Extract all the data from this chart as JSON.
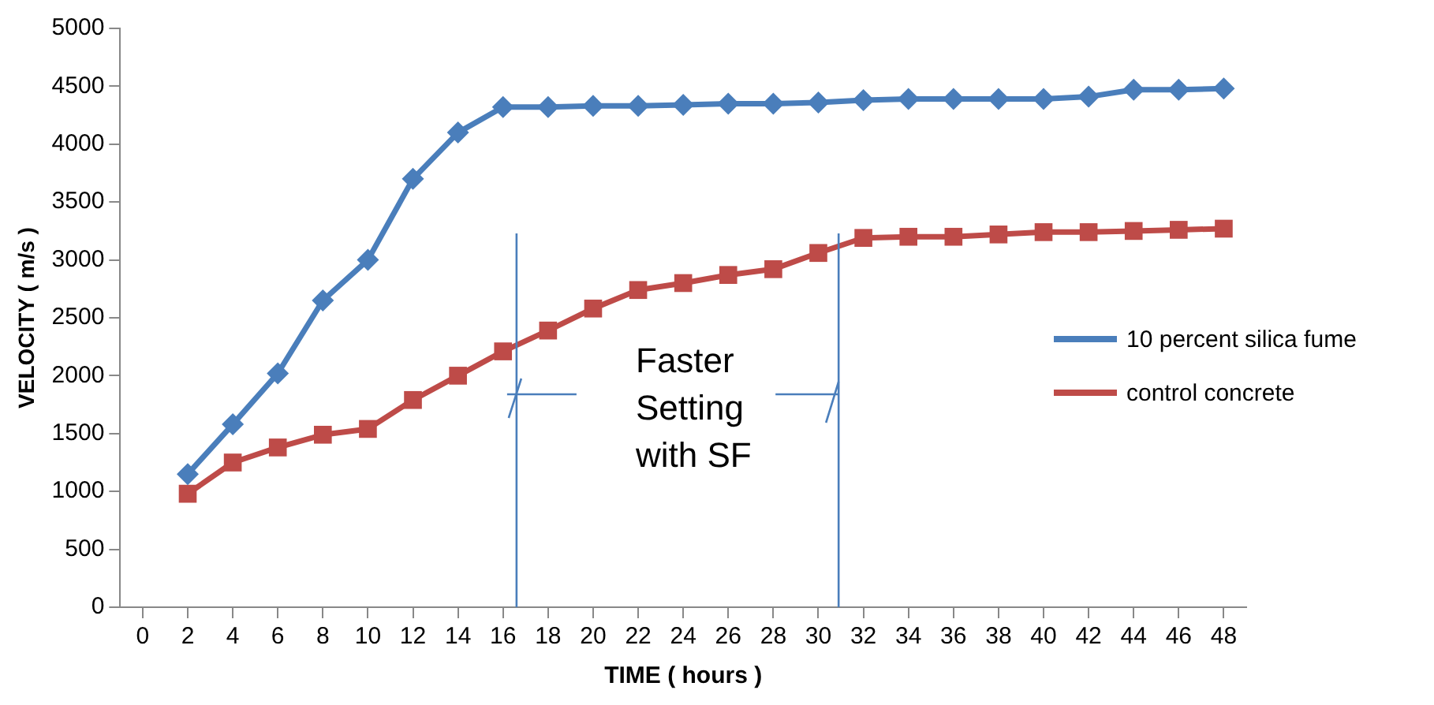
{
  "chart_data": {
    "type": "line",
    "xlabel": "TIME ( hours )",
    "ylabel": "VELOCITY ( m/s )",
    "x": [
      2,
      4,
      6,
      8,
      10,
      12,
      14,
      16,
      18,
      20,
      22,
      24,
      26,
      28,
      30,
      32,
      34,
      36,
      38,
      40,
      42,
      44,
      46,
      48
    ],
    "series": [
      {
        "name": "10 percent silica fume",
        "color": "#4a7ebb",
        "marker": "diamond",
        "values": [
          1150,
          1580,
          2020,
          2650,
          3000,
          3700,
          4100,
          4320,
          4320,
          4330,
          4330,
          4340,
          4350,
          4350,
          4360,
          4380,
          4390,
          4390,
          4390,
          4390,
          4410,
          4470,
          4470,
          4480
        ]
      },
      {
        "name": "control concrete",
        "color": "#be4b48",
        "marker": "square",
        "values": [
          980,
          1250,
          1380,
          1490,
          1540,
          1790,
          2000,
          2210,
          2390,
          2580,
          2740,
          2800,
          2870,
          2920,
          3060,
          3190,
          3200,
          3200,
          3220,
          3240,
          3240,
          3250,
          3260,
          3270
        ]
      }
    ],
    "xlim": [
      -1,
      49
    ],
    "xticks": [
      0,
      2,
      4,
      6,
      8,
      10,
      12,
      14,
      16,
      18,
      20,
      22,
      24,
      26,
      28,
      30,
      32,
      34,
      36,
      38,
      40,
      42,
      44,
      46,
      48
    ],
    "ylim": [
      0,
      5000
    ],
    "yticks": [
      0,
      500,
      1000,
      1500,
      2000,
      2500,
      3000,
      3500,
      4000,
      4500,
      5000
    ],
    "ref_lines": [
      {
        "axis": "x",
        "value": 16.6,
        "color": "#4a7ebb"
      },
      {
        "axis": "x",
        "value": 30.9,
        "color": "#4a7ebb"
      }
    ],
    "grid": false,
    "legend": "right",
    "line_style": "solid",
    "annotations": [
      "Faster Setting with SF"
    ]
  }
}
